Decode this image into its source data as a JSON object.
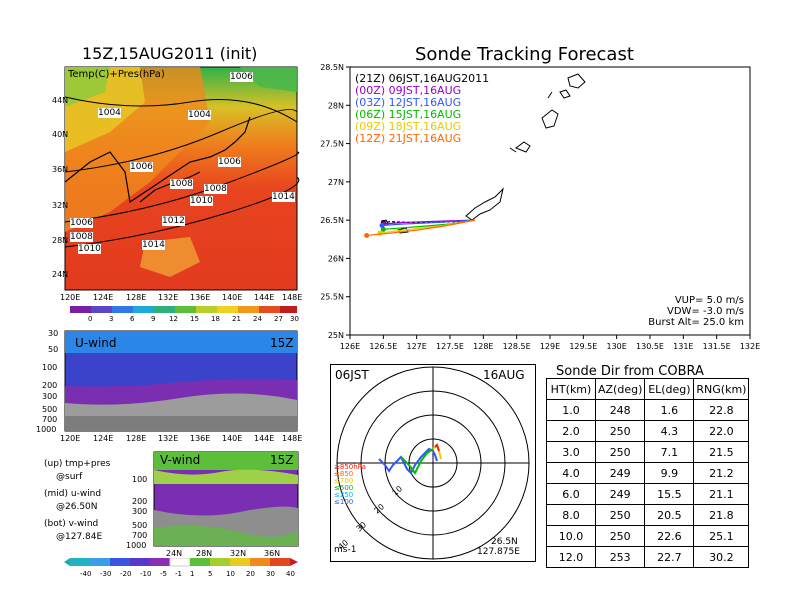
{
  "init_title": "15Z,15AUG2011 (init)",
  "sonde_title": "Sonde Tracking Forecast",
  "cobra_title": "Sonde Dir from COBRA",
  "colors": {
    "track": "#000000",
    "o00": "#9900cc",
    "o03": "#3355ff",
    "o06": "#00bb00",
    "o09": "#e6cc00",
    "o12": "#ff6600",
    "red": "#ee2211"
  },
  "map": {
    "layer_label": "Temp(C)+Pres(hPa)",
    "lat_labels": [
      "44N",
      "40N",
      "36N",
      "32N",
      "28N",
      "24N"
    ],
    "lon_labels": [
      "120E",
      "124E",
      "128E",
      "132E",
      "136E",
      "140E",
      "144E",
      "148E"
    ],
    "isobars": [
      "1006",
      "1004",
      "1004",
      "1006",
      "1006",
      "1008",
      "1008",
      "1010",
      "1014",
      "1012",
      "1006",
      "1008",
      "1010",
      "1014"
    ],
    "colorbar": [
      "0",
      "3",
      "6",
      "9",
      "12",
      "15",
      "18",
      "21",
      "24",
      "27",
      "30"
    ]
  },
  "uwind": {
    "label": "U-wind",
    "time": "15Z",
    "p_labels": [
      "30",
      "50",
      "100",
      "200",
      "300",
      "500",
      "700",
      "1000"
    ],
    "lon_labels": [
      "120E",
      "124E",
      "128E",
      "132E",
      "136E",
      "140E",
      "144E",
      "148E"
    ]
  },
  "vwind": {
    "label": "V-wind",
    "time": "15Z",
    "p_labels": [
      "100",
      "200",
      "300",
      "500",
      "700",
      "1000"
    ],
    "lat_labels": [
      "24N",
      "28N",
      "32N",
      "36N"
    ],
    "colorbar": [
      "-40",
      "-30",
      "-20",
      "-10",
      "-5",
      "-1",
      "1",
      "5",
      "10",
      "20",
      "30",
      "40"
    ]
  },
  "notes": [
    "(up) tmp+pres",
    "@surf",
    "(mid) u-wind",
    "@26.50N",
    "(bot) v-wind",
    "@127.84E"
  ],
  "chart_data": {
    "type": "scatter",
    "title": "Sonde Tracking Forecast",
    "xlim": [
      126,
      132
    ],
    "ylim": [
      25,
      28.5
    ],
    "x_ticks": [
      "126E",
      "126.5E",
      "127E",
      "127.5E",
      "128E",
      "128.5E",
      "129E",
      "129.5E",
      "130E",
      "130.5E",
      "131E",
      "131.5E",
      "132E"
    ],
    "y_ticks": [
      "28.5N",
      "28N",
      "27.5N",
      "27N",
      "26.5N",
      "26N",
      "25.5N",
      "25N"
    ],
    "legend": [
      {
        "tag": "(21Z)",
        "time": "06JST,16AUG2011",
        "color": "#000000"
      },
      {
        "tag": "(00Z)",
        "time": "09JST,16AUG",
        "color": "#9900cc"
      },
      {
        "tag": "(03Z)",
        "time": "12JST,16AUG",
        "color": "#3355ff"
      },
      {
        "tag": "(06Z)",
        "time": "15JST,16AUG",
        "color": "#00bb00"
      },
      {
        "tag": "(09Z)",
        "time": "18JST,16AUG",
        "color": "#e6cc00"
      },
      {
        "tag": "(12Z)",
        "time": "21JST,16AUG",
        "color": "#ff6600"
      }
    ],
    "series": [
      {
        "name": "21Z",
        "color": "#000000",
        "x": [
          127.875,
          127.6,
          127.2,
          126.9,
          126.6,
          126.5
        ],
        "y": [
          26.5,
          26.48,
          26.47,
          26.47,
          26.48,
          26.47
        ]
      },
      {
        "name": "00Z",
        "color": "#9900cc",
        "x": [
          127.875,
          127.5,
          127.1,
          126.8,
          126.5
        ],
        "y": [
          26.5,
          26.49,
          26.48,
          26.47,
          26.45
        ]
      },
      {
        "name": "03Z",
        "color": "#3355ff",
        "x": [
          127.875,
          127.5,
          127.1,
          126.8,
          126.48
        ],
        "y": [
          26.5,
          26.48,
          26.46,
          26.45,
          26.43
        ]
      },
      {
        "name": "06Z",
        "color": "#00bb00",
        "x": [
          127.875,
          127.5,
          127.1,
          126.8,
          126.5
        ],
        "y": [
          26.5,
          26.45,
          26.42,
          26.4,
          26.38
        ]
      },
      {
        "name": "09Z",
        "color": "#e6cc00",
        "x": [
          127.875,
          127.4,
          127.0,
          126.7,
          126.45
        ],
        "y": [
          26.5,
          26.43,
          26.39,
          26.36,
          26.33
        ]
      },
      {
        "name": "12Z",
        "color": "#ff6600",
        "x": [
          127.875,
          127.4,
          127.0,
          126.6,
          126.25
        ],
        "y": [
          26.5,
          26.42,
          26.37,
          26.33,
          26.3
        ]
      }
    ],
    "info": [
      "VUP=  5.0  m/s",
      "VDW= -3.0  m/s",
      "Burst Alt= 25.0  km"
    ]
  },
  "polar": {
    "time": "06JST",
    "date": "16AUG",
    "units": "ms-1",
    "pos": "26.5N",
    "pos2": "127.875E",
    "ring_labels": [
      "10",
      "20",
      "30",
      "40"
    ],
    "legend": [
      {
        "text": "≥850hPa",
        "color": "#ee2211"
      },
      {
        "text": "≤850",
        "color": "#ff6600"
      },
      {
        "text": "≤700",
        "color": "#e6cc00"
      },
      {
        "text": "≤500",
        "color": "#00bb00"
      },
      {
        "text": "≤250",
        "color": "#00bbee"
      },
      {
        "text": "≤100",
        "color": "#3355ff"
      }
    ]
  },
  "cobra": {
    "headers": [
      "HT(km)",
      "AZ(deg)",
      "EL(deg)",
      "RNG(km)"
    ],
    "rows": [
      [
        "1.0",
        "248",
        "1.6",
        "22.8"
      ],
      [
        "2.0",
        "250",
        "4.3",
        "22.0"
      ],
      [
        "3.0",
        "250",
        "7.1",
        "21.5"
      ],
      [
        "4.0",
        "249",
        "9.9",
        "21.2"
      ],
      [
        "6.0",
        "249",
        "15.5",
        "21.1"
      ],
      [
        "8.0",
        "250",
        "20.5",
        "21.8"
      ],
      [
        "10.0",
        "250",
        "22.6",
        "25.1"
      ],
      [
        "12.0",
        "253",
        "22.7",
        "30.2"
      ]
    ]
  }
}
